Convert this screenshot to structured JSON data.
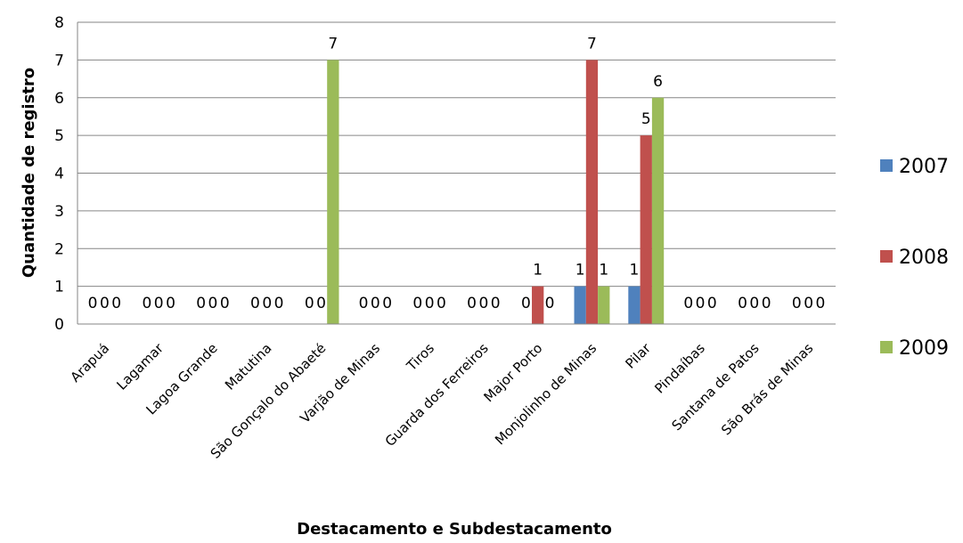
{
  "chart_data": {
    "type": "bar",
    "title": "",
    "xlabel": "Destacamento e Subdestacamento",
    "ylabel": "Quantidade de registro",
    "ylim": [
      0,
      8
    ],
    "yticks": [
      "0",
      "1",
      "2",
      "3",
      "4",
      "5",
      "6",
      "7",
      "8"
    ],
    "grid": true,
    "legend_position": "right",
    "categories": [
      "Arapuá",
      "Lagamar",
      "Lagoa Grande",
      "Matutina",
      "São Gonçalo do Abaeté",
      "Varjão de Minas",
      "Tiros",
      "Guarda dos Ferreiros",
      "Major Porto",
      "Monjolinho de Minas",
      "Pilar",
      "Pindaíbas",
      "Santana de Patos",
      "São Brás de Minas"
    ],
    "series": [
      {
        "name": "2007",
        "color": "#4F81BD",
        "values": [
          0,
          0,
          0,
          0,
          0,
          0,
          0,
          0,
          0,
          1,
          1,
          0,
          0,
          0
        ]
      },
      {
        "name": "2008",
        "color": "#C0504D",
        "values": [
          0,
          0,
          0,
          0,
          0,
          0,
          0,
          0,
          1,
          7,
          5,
          0,
          0,
          0
        ]
      },
      {
        "name": "2009",
        "color": "#9BBB59",
        "values": [
          0,
          0,
          0,
          0,
          7,
          0,
          0,
          0,
          0,
          1,
          6,
          0,
          0,
          0
        ]
      }
    ],
    "data_labels": [
      [
        "0",
        "0",
        "0"
      ],
      [
        "0",
        "0",
        "0"
      ],
      [
        "0",
        "0",
        "0"
      ],
      [
        "0",
        "0",
        "0"
      ],
      [
        "0",
        "0",
        "7"
      ],
      [
        "0",
        "0",
        "0"
      ],
      [
        "0",
        "0",
        "0"
      ],
      [
        "0",
        "0",
        "0"
      ],
      [
        "0",
        "1",
        "0"
      ],
      [
        "1",
        "7",
        "1"
      ],
      [
        "1",
        "5",
        "6"
      ],
      [
        "0",
        "0",
        "0"
      ],
      [
        "0",
        "0",
        "0"
      ],
      [
        "0",
        "0",
        "0"
      ]
    ]
  }
}
